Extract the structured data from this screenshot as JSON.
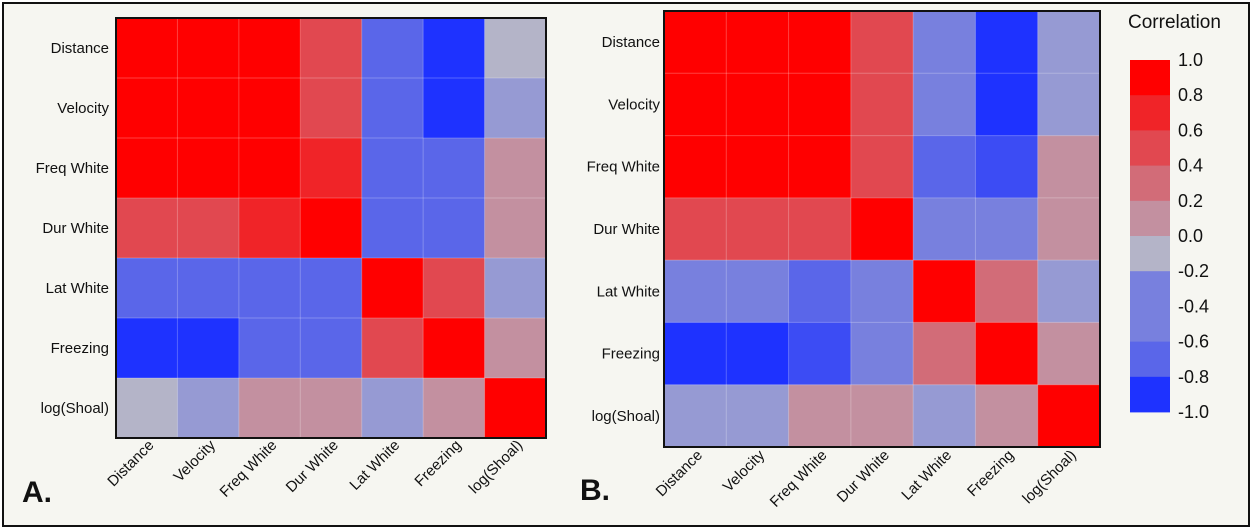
{
  "panels": {
    "a_label": "A.",
    "b_label": "B."
  },
  "legend": {
    "title": "Correlation",
    "ticks": [
      "1.0",
      "0.8",
      "0.6",
      "0.4",
      "0.2",
      "0.0",
      "-0.2",
      "-0.4",
      "-0.6",
      "-0.8",
      "-1.0"
    ],
    "color_max": "#ff0000",
    "color_mid": "#b4b4c8",
    "color_min": "#1e32ff"
  },
  "chart_data": [
    {
      "type": "heatmap",
      "panel": "A.",
      "rows": [
        "Distance",
        "Velocity",
        "Freq White",
        "Dur White",
        "Lat White",
        "Freezing",
        "log(Shoal)"
      ],
      "cols": [
        "Distance",
        "Velocity",
        "Freq White",
        "Dur White",
        "Lat White",
        "Freezing",
        "log(Shoal)"
      ],
      "values": [
        [
          1.0,
          1.0,
          1.0,
          0.55,
          -0.6,
          -0.95,
          -0.1
        ],
        [
          1.0,
          1.0,
          1.0,
          0.5,
          -0.6,
          -0.95,
          -0.15
        ],
        [
          1.0,
          1.0,
          1.0,
          0.75,
          -0.6,
          -0.7,
          0.15
        ],
        [
          0.55,
          0.5,
          0.75,
          1.0,
          -0.6,
          -0.6,
          0.15
        ],
        [
          -0.6,
          -0.6,
          -0.6,
          -0.6,
          1.0,
          0.55,
          -0.15
        ],
        [
          -0.95,
          -0.95,
          -0.7,
          -0.6,
          0.55,
          1.0,
          0.15
        ],
        [
          -0.1,
          -0.15,
          0.15,
          0.15,
          -0.15,
          0.15,
          1.0
        ]
      ],
      "clim": [
        -1.0,
        1.0
      ]
    },
    {
      "type": "heatmap",
      "panel": "B.",
      "rows": [
        "Distance",
        "Velocity",
        "Freq White",
        "Dur White",
        "Lat White",
        "Freezing",
        "log(Shoal)"
      ],
      "cols": [
        "Distance",
        "Velocity",
        "Freq White",
        "Dur White",
        "Lat White",
        "Freezing",
        "log(Shoal)"
      ],
      "values": [
        [
          1.0,
          1.0,
          1.0,
          0.5,
          -0.4,
          -0.95,
          -0.15
        ],
        [
          1.0,
          1.0,
          1.0,
          0.5,
          -0.4,
          -0.95,
          -0.15
        ],
        [
          1.0,
          1.0,
          1.0,
          0.5,
          -0.6,
          -0.75,
          0.15
        ],
        [
          0.5,
          0.5,
          0.5,
          1.0,
          -0.4,
          -0.4,
          0.15
        ],
        [
          -0.4,
          -0.4,
          -0.6,
          -0.4,
          1.0,
          0.35,
          -0.15
        ],
        [
          -0.95,
          -0.95,
          -0.75,
          -0.4,
          0.35,
          1.0,
          0.15
        ],
        [
          -0.15,
          -0.15,
          0.15,
          0.15,
          -0.15,
          0.15,
          1.0
        ]
      ],
      "clim": [
        -1.0,
        1.0
      ]
    }
  ]
}
